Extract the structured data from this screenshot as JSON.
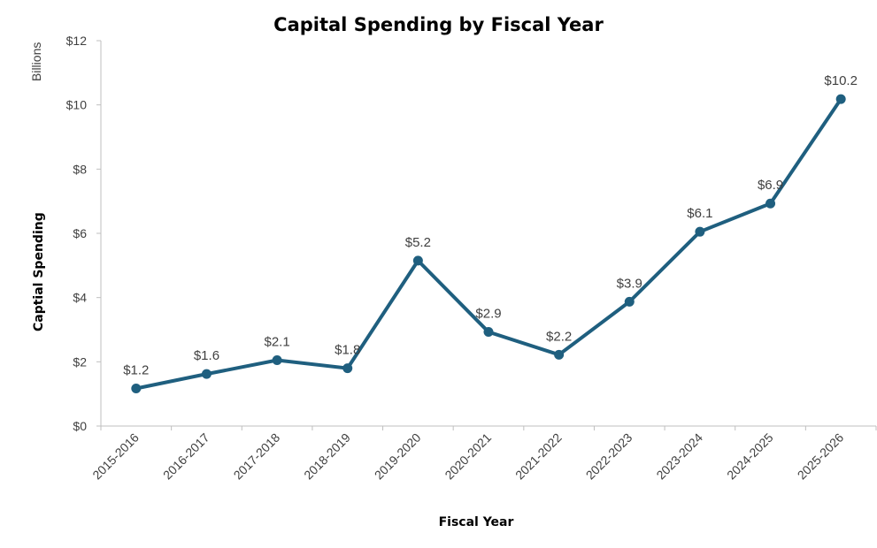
{
  "chart_data": {
    "type": "line",
    "title": "Capital Spending by Fiscal Year",
    "xlabel": "Fiscal Year",
    "ylabel": "Captial Spending",
    "unit_label": "Billions",
    "categories": [
      "2015-2016",
      "2016-2017",
      "2017-2018",
      "2018-2019",
      "2019-2020",
      "2020-2021",
      "2021-2022",
      "2022-2023",
      "2023-2024",
      "2024-2025",
      "2025-2026"
    ],
    "series": [
      {
        "values": [
          1.17,
          1.62,
          2.05,
          1.8,
          5.15,
          2.93,
          2.22,
          3.87,
          6.05,
          6.93,
          10.18
        ],
        "labels": [
          "$1.2",
          "$1.6",
          "$2.1",
          "$1.8",
          "$5.2",
          "$2.9",
          "$2.2",
          "$3.9",
          "$6.1",
          "$6.9",
          "$10.2"
        ],
        "color": "#1f5f7f"
      }
    ],
    "ylim": [
      0,
      12
    ],
    "yticks": [
      0,
      2,
      4,
      6,
      8,
      10,
      12
    ],
    "ytick_labels": [
      "$0",
      "$2",
      "$4",
      "$6",
      "$8",
      "$10",
      "$12"
    ],
    "grid": false,
    "legend": "none"
  }
}
